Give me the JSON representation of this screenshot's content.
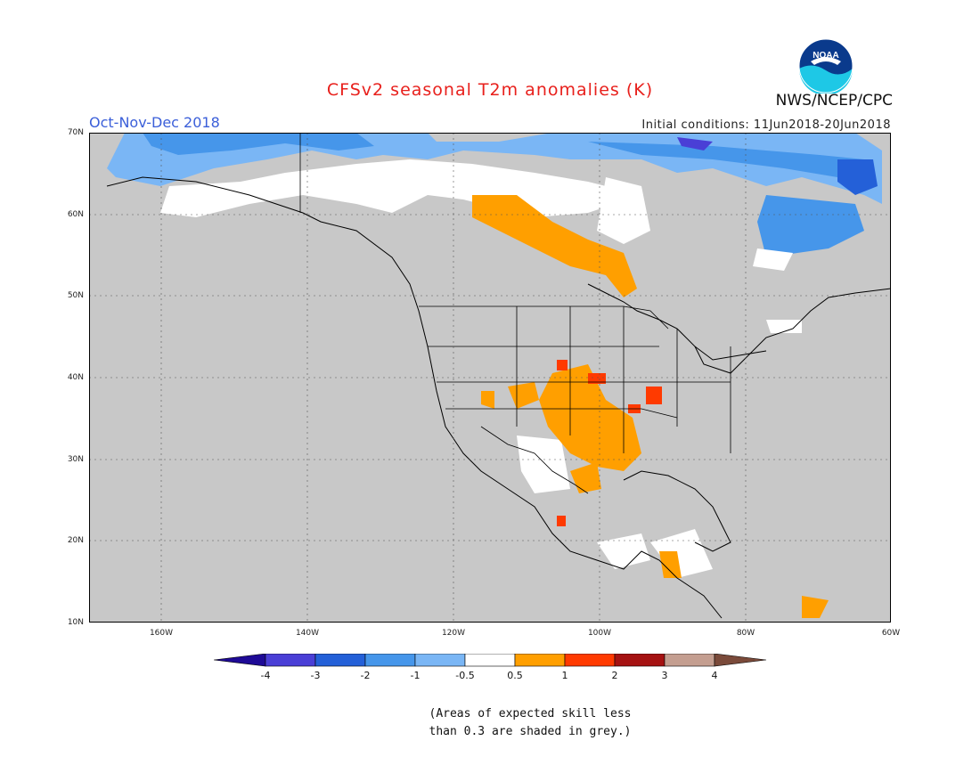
{
  "header": {
    "title": "CFSv2 seasonal T2m anomalies (K)",
    "season": "Oct-Nov-Dec 2018",
    "initial_conditions": "Initial conditions: 11Jun2018-20Jun2018",
    "agency": "NWS/NCEP/CPC",
    "logo_text": "NOAA"
  },
  "map": {
    "lat_labels": [
      "70N",
      "60N",
      "50N",
      "40N",
      "30N",
      "20N",
      "10N"
    ],
    "lon_labels": [
      "160W",
      "140W",
      "120W",
      "100W",
      "80W",
      "60W"
    ],
    "colors": {
      "grey_skill_mask": "#c8c8c8",
      "line": "#000000"
    }
  },
  "colorbar": {
    "labels": [
      "-4",
      "-3",
      "-2",
      "-1",
      "-0.5",
      "0.5",
      "1",
      "2",
      "3",
      "4"
    ],
    "colors": [
      "#1e0a96",
      "#4a3fd6",
      "#2460d8",
      "#4696ea",
      "#7ab6f5",
      "#ffffff",
      "#ff9f00",
      "#ff3a00",
      "#a51212",
      "#c49e90",
      "#7a4a3a"
    ]
  },
  "footnote": {
    "line1": "(Areas of expected skill less",
    "line2": "than 0.3 are shaded in grey.)"
  }
}
